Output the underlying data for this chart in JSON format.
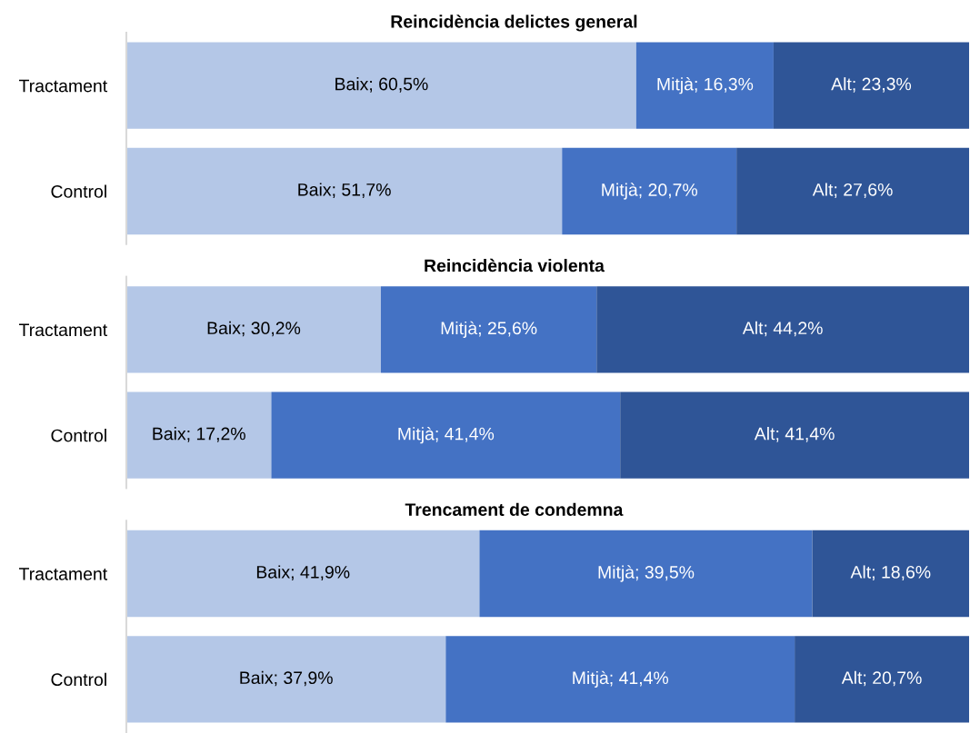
{
  "chart_data": [
    {
      "type": "bar",
      "orientation": "horizontal",
      "stacked": true,
      "title": "Reincidència delictes general",
      "categories": [
        "Tractament",
        "Control"
      ],
      "xlim": [
        0,
        100
      ],
      "tick_labels": "y",
      "series": [
        {
          "color": "#b4c7e7",
          "values": [
            60.5,
            51.7
          ],
          "value_labels": [
            "Baix; 60,5%",
            "Baix; 51,7%"
          ]
        },
        {
          "color": "#4472c4",
          "values": [
            16.3,
            20.7
          ],
          "value_labels": [
            "Mitjà; 16,3%",
            "Mitjà; 20,7%"
          ]
        },
        {
          "color": "#2f5597",
          "values": [
            23.3,
            27.6
          ],
          "value_labels": [
            "Alt; 23,3%",
            "Alt; 27,6%"
          ]
        }
      ]
    },
    {
      "type": "bar",
      "orientation": "horizontal",
      "stacked": true,
      "title": "Reincidència violenta",
      "categories": [
        "Tractament",
        "Control"
      ],
      "xlim": [
        0,
        100
      ],
      "tick_labels": "y",
      "series": [
        {
          "color": "#b4c7e7",
          "values": [
            30.2,
            17.2
          ],
          "value_labels": [
            "Baix; 30,2%",
            "Baix; 17,2%"
          ]
        },
        {
          "color": "#4472c4",
          "values": [
            25.6,
            41.4
          ],
          "value_labels": [
            "Mitjà; 25,6%",
            "Mitjà; 41,4%"
          ]
        },
        {
          "color": "#2f5597",
          "values": [
            44.2,
            41.4
          ],
          "value_labels": [
            "Alt; 44,2%",
            "Alt; 41,4%"
          ]
        }
      ]
    },
    {
      "type": "bar",
      "orientation": "horizontal",
      "stacked": true,
      "title": "Trencament de condemna",
      "categories": [
        "Tractament",
        "Control"
      ],
      "xlim": [
        0,
        100
      ],
      "tick_labels": "y",
      "series": [
        {
          "color": "#b4c7e7",
          "values": [
            41.9,
            37.9
          ],
          "value_labels": [
            "Baix; 41,9%",
            "Baix; 37,9%"
          ]
        },
        {
          "color": "#4472c4",
          "values": [
            39.5,
            41.4
          ],
          "value_labels": [
            "Mitjà; 39,5%",
            "Mitjà; 41,4%"
          ]
        },
        {
          "color": "#2f5597",
          "values": [
            18.6,
            20.7
          ],
          "value_labels": [
            "Alt; 18,6%",
            "Alt; 20,7%"
          ]
        }
      ]
    }
  ]
}
